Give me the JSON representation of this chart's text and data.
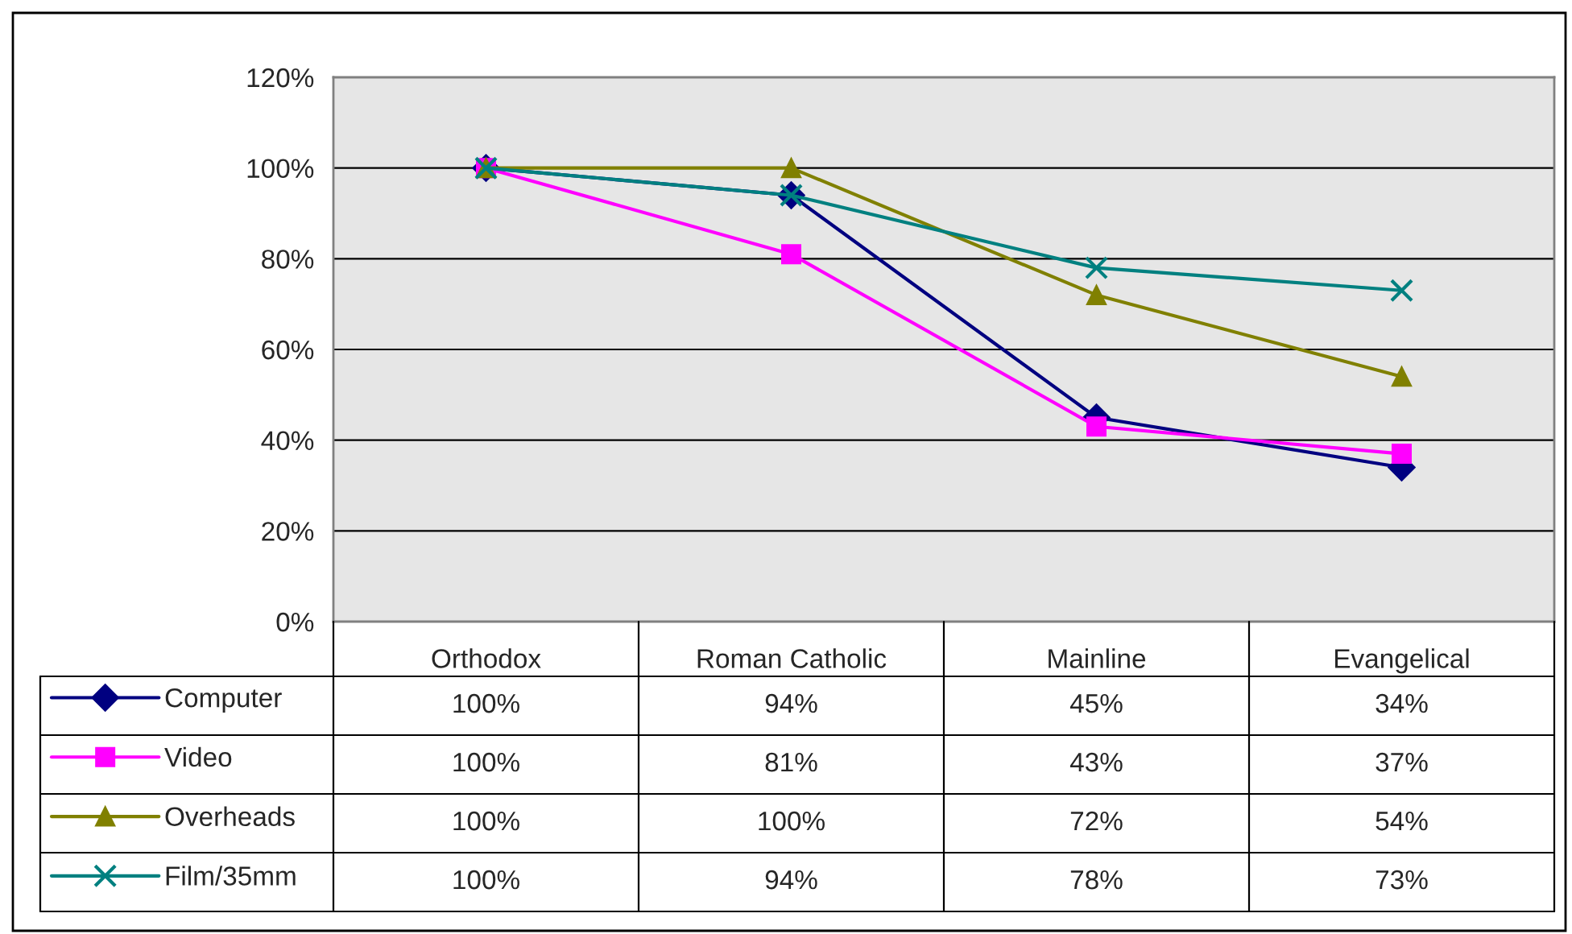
{
  "chart_data": {
    "type": "line",
    "categories": [
      "Orthodox",
      "Roman Catholic",
      "Mainline",
      "Evangelical"
    ],
    "series": [
      {
        "name": "Computer",
        "color": "#000080",
        "marker": "diamond",
        "values": [
          100,
          94,
          45,
          34
        ],
        "value_labels": [
          "100%",
          "94%",
          "45%",
          "34%"
        ]
      },
      {
        "name": "Video",
        "color": "#ff00ff",
        "marker": "square",
        "values": [
          100,
          81,
          43,
          37
        ],
        "value_labels": [
          "100%",
          "81%",
          "43%",
          "37%"
        ]
      },
      {
        "name": "Overheads",
        "color": "#808000",
        "marker": "triangle",
        "values": [
          100,
          100,
          72,
          54
        ],
        "value_labels": [
          "100%",
          "100%",
          "72%",
          "54%"
        ]
      },
      {
        "name": "Film/35mm",
        "color": "#008080",
        "marker": "cross",
        "values": [
          100,
          94,
          78,
          73
        ],
        "value_labels": [
          "100%",
          "94%",
          "78%",
          "73%"
        ]
      }
    ],
    "ylim": [
      0,
      120
    ],
    "yticks": [
      {
        "value": 0,
        "label": "0%"
      },
      {
        "value": 20,
        "label": "20%"
      },
      {
        "value": 40,
        "label": "40%"
      },
      {
        "value": 60,
        "label": "60%"
      },
      {
        "value": 80,
        "label": "80%"
      },
      {
        "value": 100,
        "label": "100%"
      },
      {
        "value": 120,
        "label": "120%"
      }
    ],
    "grid": "y",
    "legend": "bottom",
    "line_style": "solid"
  }
}
